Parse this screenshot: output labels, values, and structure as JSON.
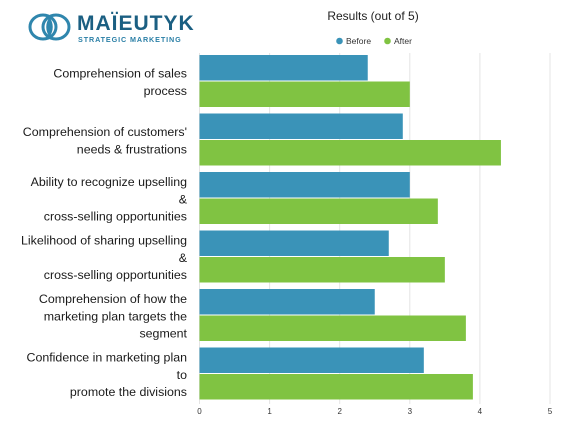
{
  "logo": {
    "name": "MAÏEUTYK",
    "tagline": "STRATEGIC MARKETING"
  },
  "chart_data": {
    "type": "bar",
    "orientation": "horizontal",
    "title": "Results (out of 5)",
    "xlim": [
      0,
      5
    ],
    "xticks": [
      "0",
      "1",
      "2",
      "3",
      "4",
      "5"
    ],
    "grid": "vertical",
    "legend": "top-right",
    "categories": [
      [
        "Comprehension of sales",
        "process"
      ],
      [
        "Comprehension of customers'",
        "needs & frustrations"
      ],
      [
        "Ability to recognize upselling",
        "&",
        "cross-selling opportunities"
      ],
      [
        "Likelihood of sharing upselling",
        "&",
        "cross-selling opportunities"
      ],
      [
        "Comprehension of how the",
        "marketing plan targets the",
        "segment"
      ],
      [
        "Confidence in marketing plan",
        "to",
        "promote the divisions"
      ]
    ],
    "series": [
      {
        "name": "Before",
        "color": "#3a93b8",
        "values": [
          2.4,
          2.9,
          3.0,
          2.7,
          2.5,
          3.2
        ]
      },
      {
        "name": "After",
        "color": "#80c342",
        "values": [
          3.0,
          4.3,
          3.4,
          3.5,
          3.8,
          3.9
        ]
      }
    ]
  }
}
